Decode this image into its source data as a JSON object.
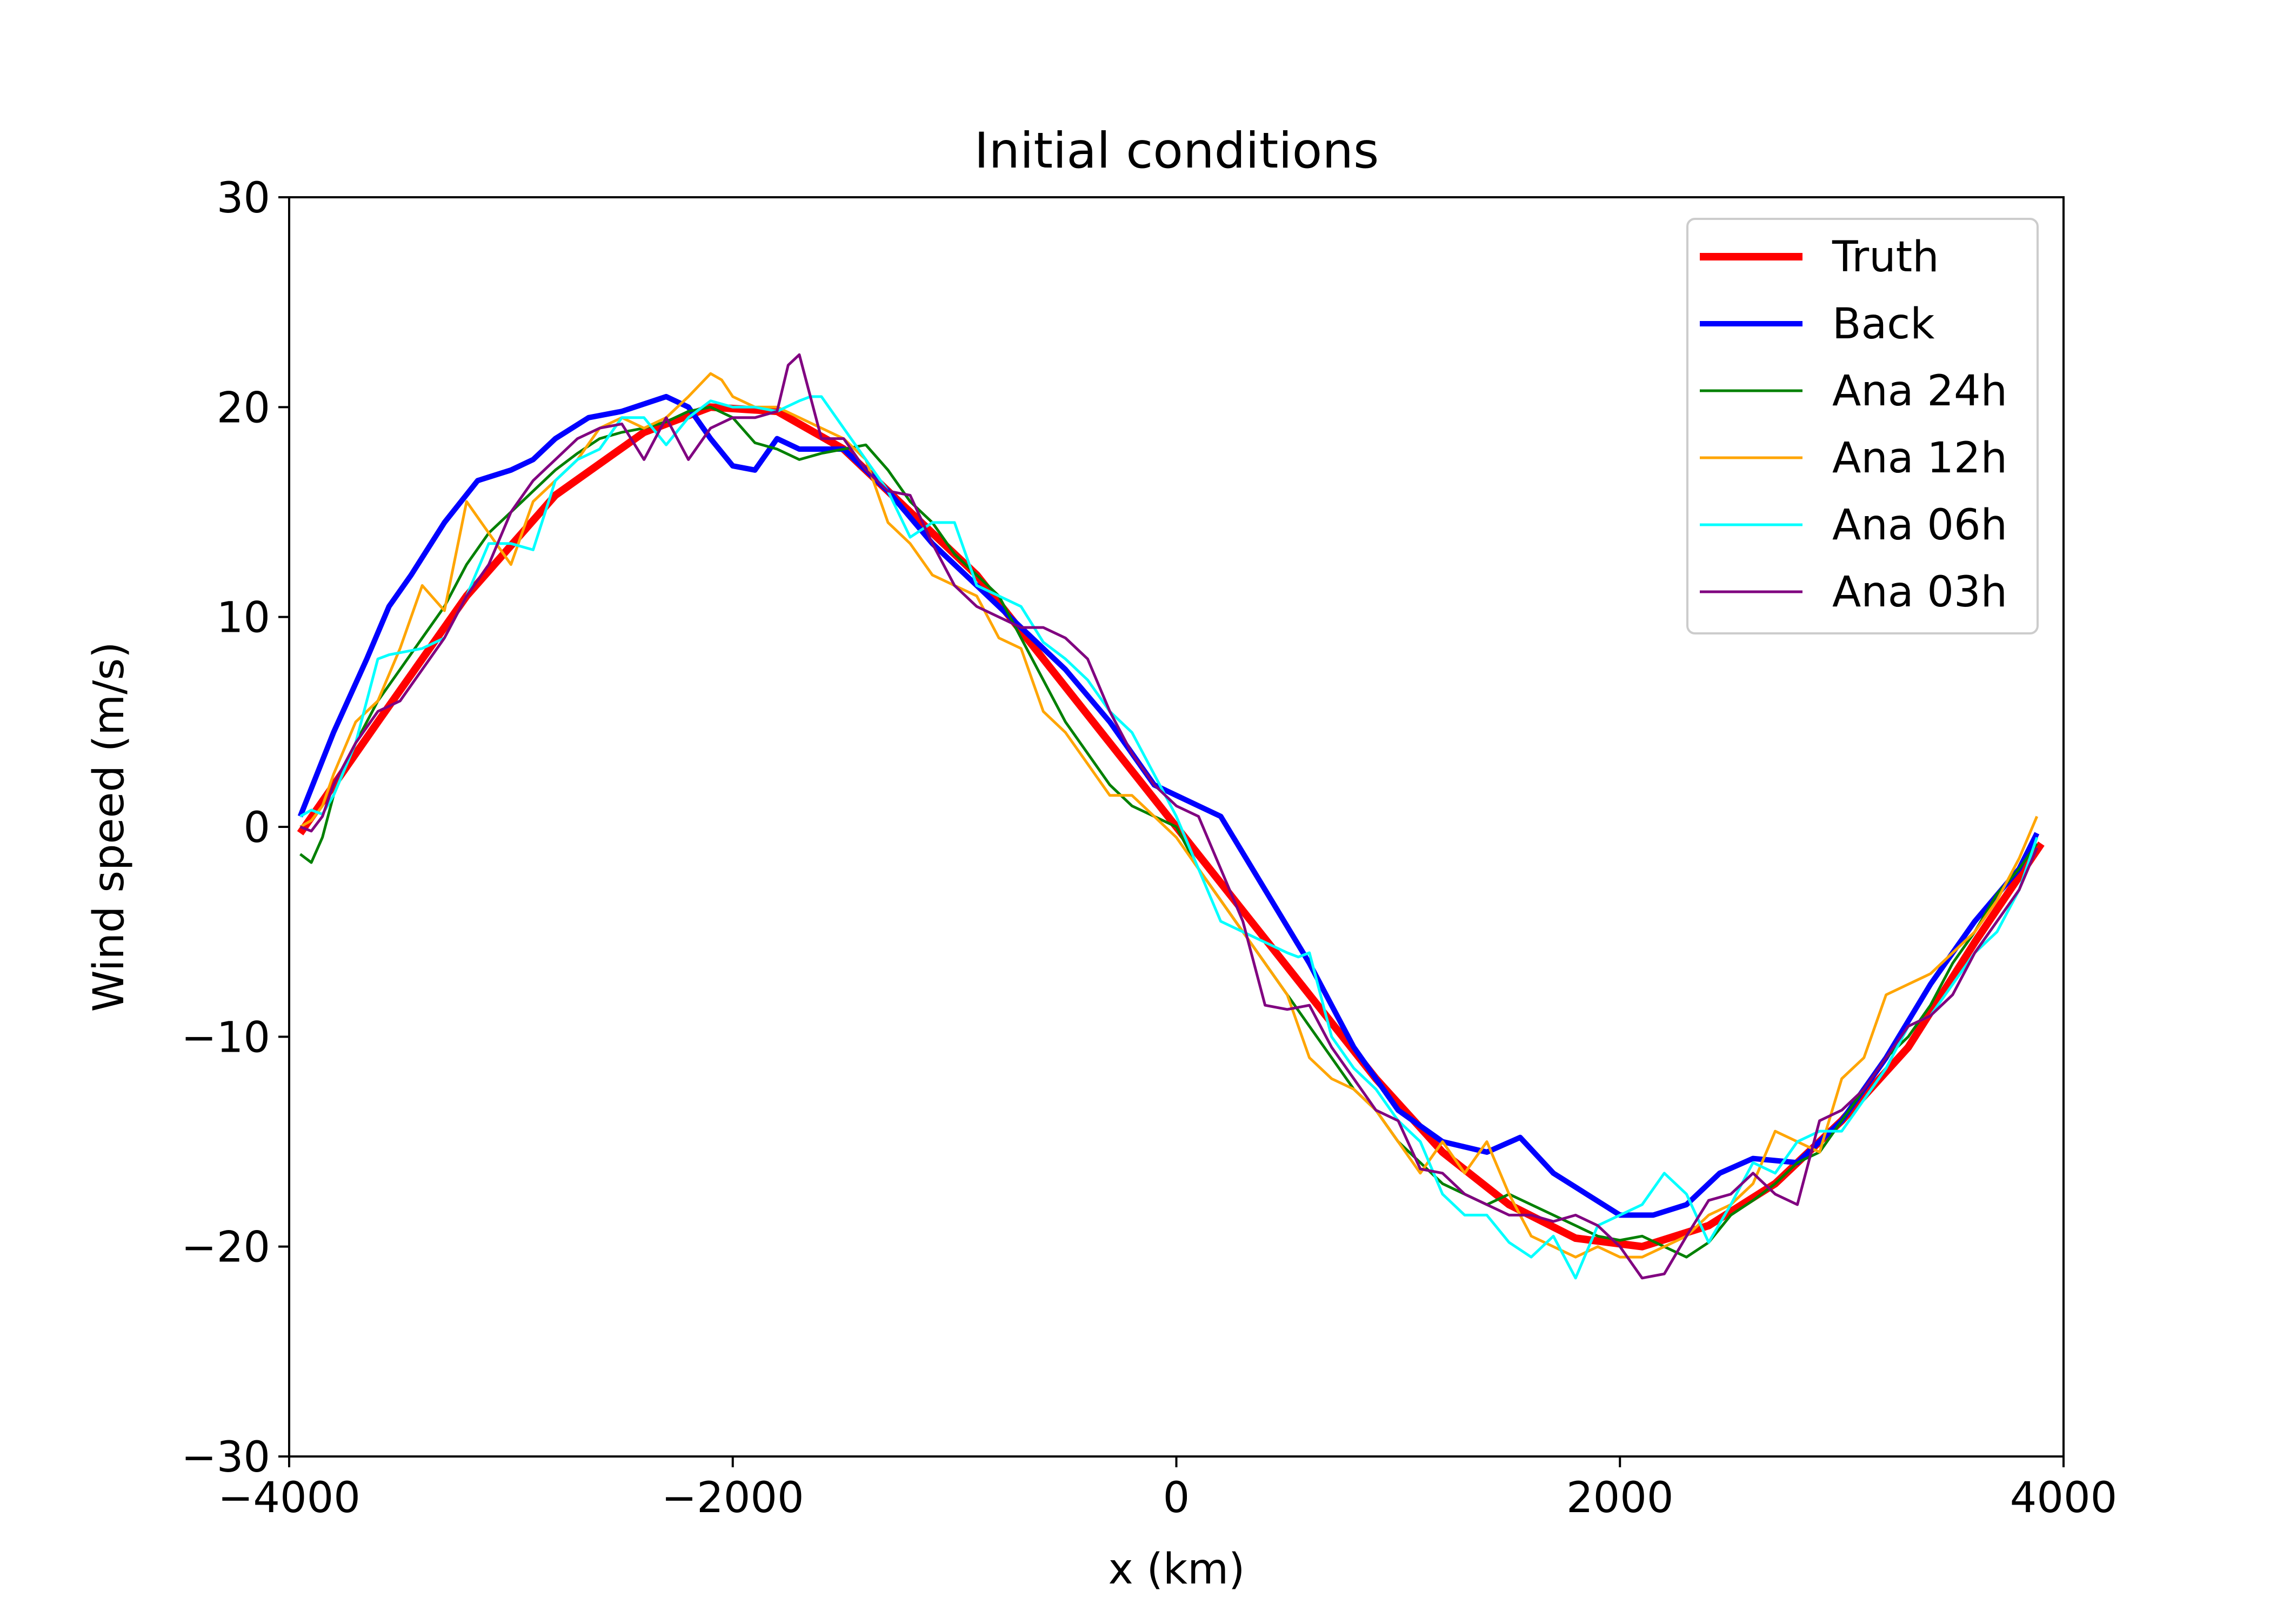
{
  "chart_data": {
    "type": "line",
    "title": "Initial conditions",
    "xlabel": "x (km)",
    "ylabel": "Wind speed (m/s)",
    "xlim": [
      -4000,
      4000
    ],
    "ylim": [
      -30,
      30
    ],
    "xticks": [
      -4000,
      -2000,
      0,
      2000,
      4000
    ],
    "xtick_labels": [
      "−4000",
      "−2000",
      "0",
      "2000",
      "4000"
    ],
    "yticks": [
      -30,
      -20,
      -10,
      0,
      10,
      20,
      30
    ],
    "ytick_labels": [
      "−30",
      "−20",
      "−10",
      "0",
      "10",
      "20",
      "30"
    ],
    "grid": false,
    "legend_position": "top-right",
    "series": [
      {
        "name": "Truth",
        "color": "#ff0000",
        "x": [
          -3950,
          -3600,
          -3200,
          -2800,
          -2400,
          -2100,
          -1800,
          -1500,
          -1200,
          -900,
          -600,
          -300,
          0,
          300,
          600,
          900,
          1200,
          1500,
          1800,
          2100,
          2400,
          2700,
          3000,
          3300,
          3600,
          3900
        ],
        "values": [
          -0.3,
          5.0,
          11.0,
          15.8,
          18.8,
          20.0,
          19.8,
          18.0,
          15.0,
          12.0,
          8.0,
          4.0,
          0.0,
          -4.0,
          -8.0,
          -12.0,
          -15.5,
          -18.0,
          -19.6,
          -20.0,
          -19.0,
          -17.0,
          -14.0,
          -10.5,
          -5.5,
          -0.8
        ]
      },
      {
        "name": "Back",
        "color": "#0000ff",
        "x": [
          -3950,
          -3800,
          -3650,
          -3550,
          -3450,
          -3300,
          -3150,
          -3000,
          -2900,
          -2800,
          -2650,
          -2500,
          -2300,
          -2200,
          -2100,
          -2000,
          -1900,
          -1800,
          -1700,
          -1500,
          -1300,
          -1100,
          -900,
          -700,
          -500,
          -300,
          -100,
          0,
          200,
          400,
          600,
          800,
          1000,
          1200,
          1400,
          1550,
          1700,
          1850,
          2000,
          2150,
          2300,
          2450,
          2600,
          2800,
          3000,
          3200,
          3400,
          3600,
          3800,
          3880
        ],
        "values": [
          0.5,
          4.5,
          8.0,
          10.5,
          12.0,
          14.5,
          16.5,
          17.0,
          17.5,
          18.5,
          19.5,
          19.8,
          20.5,
          20.0,
          18.5,
          17.2,
          17.0,
          18.5,
          18.0,
          18.0,
          16.0,
          13.5,
          11.5,
          9.5,
          7.5,
          5.0,
          2.0,
          1.5,
          0.5,
          -3.0,
          -6.5,
          -10.5,
          -13.5,
          -15.0,
          -15.5,
          -14.8,
          -16.5,
          -17.5,
          -18.5,
          -18.5,
          -18.0,
          -16.5,
          -15.8,
          -16.0,
          -14.0,
          -11.0,
          -7.5,
          -4.5,
          -2.0,
          -0.3
        ]
      },
      {
        "name": "Ana 24h",
        "color": "#008000",
        "x": [
          -3950,
          -3900,
          -3850,
          -3800,
          -3700,
          -3600,
          -3500,
          -3400,
          -3300,
          -3200,
          -3100,
          -3000,
          -2900,
          -2800,
          -2700,
          -2600,
          -2500,
          -2400,
          -2300,
          -2200,
          -2100,
          -2000,
          -1900,
          -1800,
          -1700,
          -1600,
          -1500,
          -1400,
          -1300,
          -1200,
          -1100,
          -1000,
          -900,
          -800,
          -700,
          -600,
          -500,
          -400,
          -300,
          -200,
          -100,
          0,
          100,
          200,
          300,
          400,
          500,
          600,
          700,
          800,
          900,
          1000,
          1100,
          1200,
          1300,
          1400,
          1500,
          1600,
          1700,
          1800,
          1900,
          2000,
          2100,
          2200,
          2300,
          2400,
          2500,
          2600,
          2700,
          2800,
          2900,
          3000,
          3100,
          3200,
          3300,
          3400,
          3500,
          3600,
          3700,
          3800,
          3880
        ],
        "values": [
          -1.3,
          -1.7,
          -0.5,
          1.5,
          4.0,
          6.0,
          7.5,
          9.0,
          10.5,
          12.5,
          14.0,
          15.0,
          16.0,
          17.0,
          17.8,
          18.5,
          18.8,
          19.0,
          19.3,
          19.8,
          20.0,
          19.5,
          18.3,
          18.0,
          17.5,
          17.8,
          18.0,
          18.2,
          17.0,
          15.5,
          14.5,
          13.0,
          12.0,
          11.0,
          9.0,
          7.0,
          5.0,
          3.5,
          2.0,
          1.0,
          0.5,
          0.0,
          -2.0,
          -3.5,
          -5.0,
          -6.5,
          -8.0,
          -9.5,
          -11.0,
          -12.5,
          -13.5,
          -15.0,
          -16.0,
          -17.0,
          -17.5,
          -18.0,
          -17.5,
          -18.0,
          -18.5,
          -19.0,
          -19.5,
          -19.7,
          -19.5,
          -20.0,
          -20.5,
          -19.8,
          -18.5,
          -17.8,
          -17.0,
          -16.0,
          -15.5,
          -14.0,
          -12.5,
          -11.0,
          -10.0,
          -8.5,
          -6.5,
          -5.0,
          -3.2,
          -2.0,
          -0.8
        ]
      },
      {
        "name": "Ana 12h",
        "color": "#ffa500",
        "x": [
          -3950,
          -3900,
          -3850,
          -3800,
          -3700,
          -3600,
          -3500,
          -3400,
          -3300,
          -3200,
          -3100,
          -3000,
          -2900,
          -2800,
          -2700,
          -2600,
          -2500,
          -2400,
          -2300,
          -2200,
          -2100,
          -2050,
          -2000,
          -1900,
          -1800,
          -1700,
          -1600,
          -1500,
          -1400,
          -1300,
          -1200,
          -1100,
          -1000,
          -900,
          -800,
          -700,
          -600,
          -500,
          -400,
          -300,
          -200,
          -100,
          0,
          100,
          200,
          300,
          400,
          500,
          600,
          700,
          800,
          900,
          1000,
          1100,
          1200,
          1300,
          1400,
          1500,
          1600,
          1700,
          1800,
          1900,
          2000,
          2100,
          2200,
          2300,
          2400,
          2500,
          2600,
          2700,
          2800,
          2900,
          3000,
          3100,
          3200,
          3300,
          3400,
          3500,
          3600,
          3700,
          3800,
          3880
        ],
        "values": [
          0.0,
          0.3,
          1.0,
          2.5,
          5.0,
          6.0,
          8.5,
          11.5,
          10.3,
          15.5,
          14.0,
          12.5,
          15.5,
          16.5,
          17.5,
          19.0,
          19.5,
          19.0,
          19.5,
          20.5,
          21.6,
          21.3,
          20.5,
          20.0,
          20.0,
          19.5,
          19.0,
          18.5,
          17.5,
          14.5,
          13.5,
          12.0,
          11.5,
          11.0,
          9.0,
          8.5,
          5.5,
          4.5,
          3.0,
          1.5,
          1.5,
          0.5,
          -0.5,
          -2.0,
          -3.5,
          -5.0,
          -6.5,
          -8.0,
          -11.0,
          -12.0,
          -12.5,
          -13.5,
          -15.0,
          -16.5,
          -15.0,
          -16.5,
          -15.0,
          -17.5,
          -19.5,
          -20.0,
          -20.5,
          -20.0,
          -20.5,
          -20.5,
          -20.0,
          -19.5,
          -18.5,
          -18.0,
          -17.0,
          -14.5,
          -15.0,
          -15.5,
          -12.0,
          -11.0,
          -8.0,
          -7.5,
          -7.0,
          -6.0,
          -5.0,
          -3.5,
          -1.5,
          0.5
        ]
      },
      {
        "name": "Ana 06h",
        "color": "#00ffff",
        "x": [
          -3950,
          -3900,
          -3850,
          -3800,
          -3700,
          -3600,
          -3550,
          -3500,
          -3400,
          -3300,
          -3200,
          -3100,
          -3000,
          -2900,
          -2800,
          -2700,
          -2600,
          -2500,
          -2400,
          -2300,
          -2200,
          -2100,
          -2000,
          -1900,
          -1800,
          -1700,
          -1650,
          -1600,
          -1500,
          -1400,
          -1300,
          -1200,
          -1100,
          -1000,
          -900,
          -800,
          -700,
          -600,
          -500,
          -400,
          -300,
          -200,
          -100,
          0,
          100,
          200,
          300,
          400,
          500,
          550,
          600,
          700,
          800,
          900,
          1000,
          1100,
          1200,
          1300,
          1400,
          1500,
          1600,
          1700,
          1800,
          1900,
          2000,
          2100,
          2200,
          2300,
          2400,
          2500,
          2600,
          2700,
          2800,
          2900,
          3000,
          3100,
          3200,
          3300,
          3400,
          3500,
          3600,
          3700,
          3800,
          3880
        ],
        "values": [
          0.5,
          0.8,
          0.6,
          1.5,
          4.0,
          8.0,
          8.2,
          8.3,
          8.5,
          9.0,
          11.0,
          13.5,
          13.5,
          13.2,
          16.5,
          17.5,
          18.0,
          19.5,
          19.5,
          18.2,
          19.5,
          20.3,
          20.0,
          20.0,
          19.8,
          20.3,
          20.5,
          20.5,
          19.0,
          17.5,
          16.0,
          13.8,
          14.5,
          14.5,
          11.5,
          11.0,
          10.5,
          8.8,
          8.0,
          7.0,
          5.5,
          4.5,
          2.5,
          0.5,
          -2.0,
          -4.5,
          -5.0,
          -5.5,
          -6.0,
          -6.2,
          -6.0,
          -10.0,
          -11.5,
          -12.5,
          -14.0,
          -15.0,
          -17.5,
          -18.5,
          -18.5,
          -19.8,
          -20.5,
          -19.5,
          -21.5,
          -19.0,
          -18.5,
          -18.0,
          -16.5,
          -17.5,
          -19.8,
          -18.0,
          -16.0,
          -16.5,
          -15.0,
          -14.5,
          -14.5,
          -13.0,
          -11.5,
          -9.5,
          -9.0,
          -7.5,
          -6.0,
          -5.0,
          -3.0,
          -0.5
        ]
      },
      {
        "name": "Ana 03h",
        "color": "#800080",
        "x": [
          -3950,
          -3900,
          -3850,
          -3800,
          -3700,
          -3600,
          -3500,
          -3400,
          -3300,
          -3200,
          -3100,
          -3000,
          -2900,
          -2800,
          -2700,
          -2600,
          -2500,
          -2400,
          -2300,
          -2200,
          -2100,
          -2000,
          -1900,
          -1800,
          -1750,
          -1700,
          -1650,
          -1600,
          -1500,
          -1400,
          -1300,
          -1200,
          -1100,
          -1000,
          -900,
          -800,
          -700,
          -600,
          -500,
          -400,
          -300,
          -200,
          -100,
          0,
          100,
          200,
          300,
          400,
          500,
          600,
          700,
          800,
          900,
          1000,
          1100,
          1200,
          1300,
          1400,
          1500,
          1600,
          1700,
          1800,
          1900,
          2000,
          2100,
          2200,
          2300,
          2400,
          2500,
          2600,
          2700,
          2800,
          2900,
          3000,
          3100,
          3200,
          3300,
          3400,
          3500,
          3600,
          3700,
          3800,
          3880
        ],
        "values": [
          0.0,
          -0.2,
          0.5,
          2.0,
          4.0,
          5.5,
          6.0,
          7.5,
          9.0,
          11.0,
          12.5,
          15.0,
          16.5,
          17.5,
          18.5,
          19.0,
          19.2,
          17.5,
          19.5,
          17.5,
          19.0,
          19.5,
          19.5,
          19.8,
          22.0,
          22.5,
          20.5,
          18.5,
          18.5,
          17.0,
          16.0,
          15.8,
          13.5,
          11.5,
          10.5,
          10.0,
          9.5,
          9.5,
          9.0,
          8.0,
          5.5,
          3.5,
          2.0,
          1.0,
          0.5,
          -2.0,
          -4.5,
          -8.5,
          -8.7,
          -8.5,
          -10.5,
          -12.0,
          -13.5,
          -14.0,
          -16.3,
          -16.5,
          -17.5,
          -18.0,
          -18.5,
          -18.5,
          -18.8,
          -18.5,
          -19.0,
          -20.0,
          -21.5,
          -21.3,
          -19.5,
          -17.8,
          -17.5,
          -16.5,
          -17.5,
          -18.0,
          -14.0,
          -13.5,
          -12.5,
          -11.0,
          -9.5,
          -9.0,
          -8.0,
          -6.0,
          -4.5,
          -3.0,
          -1.0
        ]
      }
    ]
  }
}
